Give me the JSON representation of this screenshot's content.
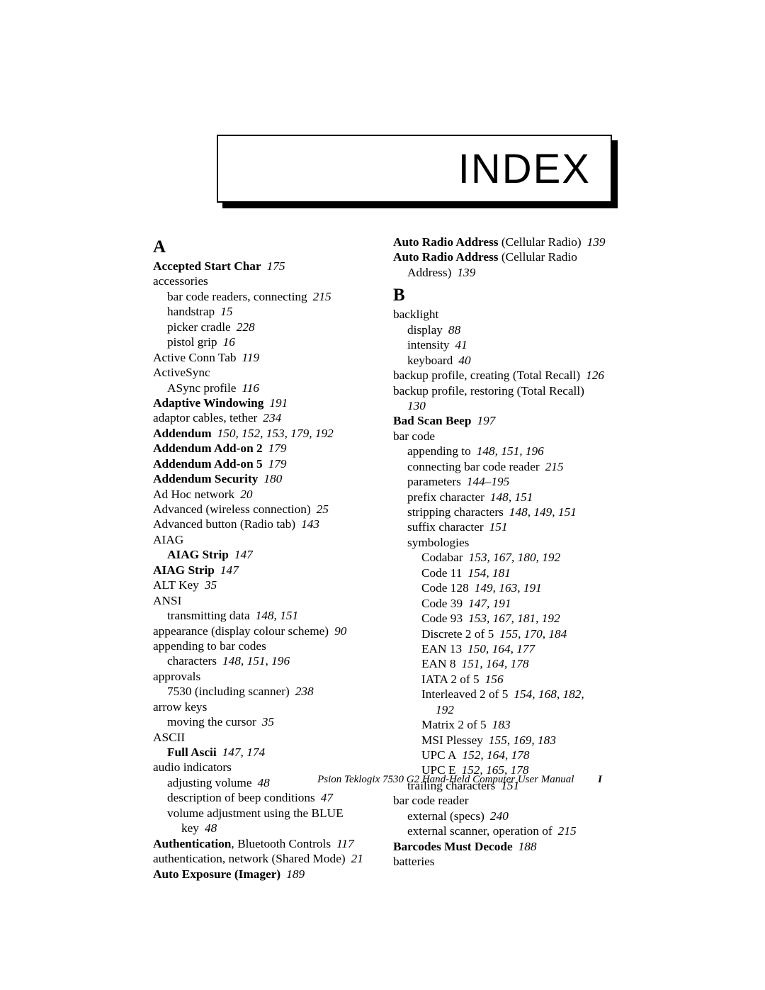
{
  "banner_title": "INDEX",
  "footer_text": "Psion Teklogix 7530 G2 Hand-Held Computer User Manual",
  "footer_page": "I",
  "sections": {
    "A": "A",
    "B": "B"
  },
  "col1": [
    {
      "indent": 0,
      "bold": true,
      "text": "Accepted Start Char",
      "pages": "175"
    },
    {
      "indent": 0,
      "text": "accessories"
    },
    {
      "indent": 1,
      "text": "bar code readers, connecting",
      "pages": "215"
    },
    {
      "indent": 1,
      "text": "handstrap",
      "pages": "15"
    },
    {
      "indent": 1,
      "text": "picker cradle",
      "pages": "228"
    },
    {
      "indent": 1,
      "text": "pistol grip",
      "pages": "16"
    },
    {
      "indent": 0,
      "text": "Active Conn Tab",
      "pages": "119"
    },
    {
      "indent": 0,
      "text": "ActiveSync"
    },
    {
      "indent": 1,
      "text": "ASync profile",
      "pages": "116"
    },
    {
      "indent": 0,
      "bold": true,
      "text": "Adaptive Windowing",
      "pages": "191"
    },
    {
      "indent": 0,
      "text": "adaptor cables, tether",
      "pages": "234"
    },
    {
      "indent": 0,
      "bold": true,
      "text": "Addendum",
      "pages": "150, 152, 153, 179, 192"
    },
    {
      "indent": 0,
      "bold": true,
      "text": "Addendum Add-on 2",
      "pages": "179"
    },
    {
      "indent": 0,
      "bold": true,
      "text": "Addendum Add-on 5",
      "pages": "179"
    },
    {
      "indent": 0,
      "bold": true,
      "text": "Addendum Security",
      "pages": "180"
    },
    {
      "indent": 0,
      "text": "Ad Hoc network",
      "pages": "20"
    },
    {
      "indent": 0,
      "text": "Advanced (wireless connection)",
      "pages": "25"
    },
    {
      "indent": 0,
      "text": "Advanced button (Radio tab)",
      "pages": "143"
    },
    {
      "indent": 0,
      "text": "AIAG"
    },
    {
      "indent": 1,
      "bold": true,
      "text": "AIAG Strip",
      "pages": "147"
    },
    {
      "indent": 0,
      "bold": true,
      "text": "AIAG Strip",
      "pages": "147"
    },
    {
      "indent": 0,
      "text": "ALT Key",
      "pages": "35"
    },
    {
      "indent": 0,
      "text": "ANSI"
    },
    {
      "indent": 1,
      "text": "transmitting data",
      "pages": "148, 151"
    },
    {
      "indent": 0,
      "text": "appearance (display colour scheme)",
      "pages": "90"
    },
    {
      "indent": 0,
      "text": "appending to bar codes"
    },
    {
      "indent": 1,
      "text": "characters",
      "pages": "148, 151, 196"
    },
    {
      "indent": 0,
      "text": "approvals"
    },
    {
      "indent": 1,
      "text": "7530 (including scanner)",
      "pages": "238"
    },
    {
      "indent": 0,
      "text": "arrow keys"
    },
    {
      "indent": 1,
      "text": "moving the cursor",
      "pages": "35"
    },
    {
      "indent": 0,
      "text": "ASCII"
    },
    {
      "indent": 1,
      "bold": true,
      "text": "Full Ascii",
      "pages": "147, 174"
    },
    {
      "indent": 0,
      "text": "audio indicators"
    },
    {
      "indent": 1,
      "text": "adjusting volume",
      "pages": "48"
    },
    {
      "indent": 1,
      "text": "description of beep conditions",
      "pages": "47"
    },
    {
      "indent": 1,
      "text": "volume adjustment using the BLUE"
    },
    {
      "indent": 2,
      "text": "key",
      "pages": "48"
    },
    {
      "indent": 0,
      "mixed": true,
      "parts": [
        {
          "bold": true,
          "text": "Authentication"
        },
        {
          "text": ", Bluetooth Controls"
        }
      ],
      "pages": "117"
    },
    {
      "indent": 0,
      "text": "authentication, network (Shared Mode)",
      "pages": "21"
    },
    {
      "indent": 0,
      "bold": true,
      "text": "Auto Exposure (Imager)",
      "pages": "189"
    }
  ],
  "col2top": [
    {
      "indent": 0,
      "mixed": true,
      "parts": [
        {
          "bold": true,
          "text": "Auto Radio Address"
        },
        {
          "text": " (Cellular Radio)"
        }
      ],
      "pages": "139"
    },
    {
      "indent": 0,
      "mixed": true,
      "parts": [
        {
          "bold": true,
          "text": "Auto Radio Address"
        },
        {
          "text": " (Cellular Radio"
        }
      ]
    },
    {
      "indent": 1,
      "text": "Address)",
      "pages": "139"
    }
  ],
  "col2b": [
    {
      "indent": 0,
      "text": "backlight"
    },
    {
      "indent": 1,
      "text": "display",
      "pages": "88"
    },
    {
      "indent": 1,
      "text": "intensity",
      "pages": "41"
    },
    {
      "indent": 1,
      "text": "keyboard",
      "pages": "40"
    },
    {
      "indent": 0,
      "text": "backup profile, creating (Total Recall)",
      "pages": "126"
    },
    {
      "indent": 0,
      "text": "backup profile, restoring (Total Recall)"
    },
    {
      "indent": 1,
      "pagesOnly": true,
      "pages": "130"
    },
    {
      "indent": 0,
      "bold": true,
      "text": "Bad Scan Beep",
      "pages": "197"
    },
    {
      "indent": 0,
      "text": "bar code"
    },
    {
      "indent": 1,
      "text": "appending to",
      "pages": "148, 151, 196"
    },
    {
      "indent": 1,
      "text": "connecting bar code reader",
      "pages": "215"
    },
    {
      "indent": 1,
      "text": "parameters",
      "pages": "144–195"
    },
    {
      "indent": 1,
      "text": "prefix character",
      "pages": "148, 151"
    },
    {
      "indent": 1,
      "text": "stripping characters",
      "pages": "148, 149, 151"
    },
    {
      "indent": 1,
      "text": "suffix character",
      "pages": "151"
    },
    {
      "indent": 1,
      "text": "symbologies"
    },
    {
      "indent": 2,
      "text": "Codabar",
      "pages": "153, 167, 180, 192"
    },
    {
      "indent": 2,
      "text": "Code 11",
      "pages": "154, 181"
    },
    {
      "indent": 2,
      "text": "Code 128",
      "pages": "149, 163, 191"
    },
    {
      "indent": 2,
      "text": "Code 39",
      "pages": "147, 191"
    },
    {
      "indent": 2,
      "text": "Code 93",
      "pages": "153, 167, 181, 192"
    },
    {
      "indent": 2,
      "text": "Discrete 2 of 5",
      "pages": "155, 170, 184"
    },
    {
      "indent": 2,
      "text": "EAN 13",
      "pages": "150, 164, 177"
    },
    {
      "indent": 2,
      "text": "EAN 8",
      "pages": "151, 164, 178"
    },
    {
      "indent": 2,
      "text": "IATA 2 of 5",
      "pages": "156"
    },
    {
      "indent": 2,
      "text": "Interleaved 2 of 5",
      "pages": "154, 168, 182,"
    },
    {
      "indent": 3,
      "pagesOnly": true,
      "pages": "192"
    },
    {
      "indent": 2,
      "text": "Matrix 2 of 5",
      "pages": "183"
    },
    {
      "indent": 2,
      "text": "MSI Plessey",
      "pages": "155, 169, 183"
    },
    {
      "indent": 2,
      "text": "UPC A",
      "pages": "152, 164, 178"
    },
    {
      "indent": 2,
      "text": "UPC E",
      "pages": "152, 165, 178"
    },
    {
      "indent": 1,
      "text": "trailing characters",
      "pages": "151"
    },
    {
      "indent": 0,
      "text": "bar code reader"
    },
    {
      "indent": 1,
      "text": "external (specs)",
      "pages": "240"
    },
    {
      "indent": 1,
      "text": "external scanner, operation of",
      "pages": "215"
    },
    {
      "indent": 0,
      "bold": true,
      "text": "Barcodes Must Decode",
      "pages": "188"
    },
    {
      "indent": 0,
      "text": "batteries"
    }
  ]
}
